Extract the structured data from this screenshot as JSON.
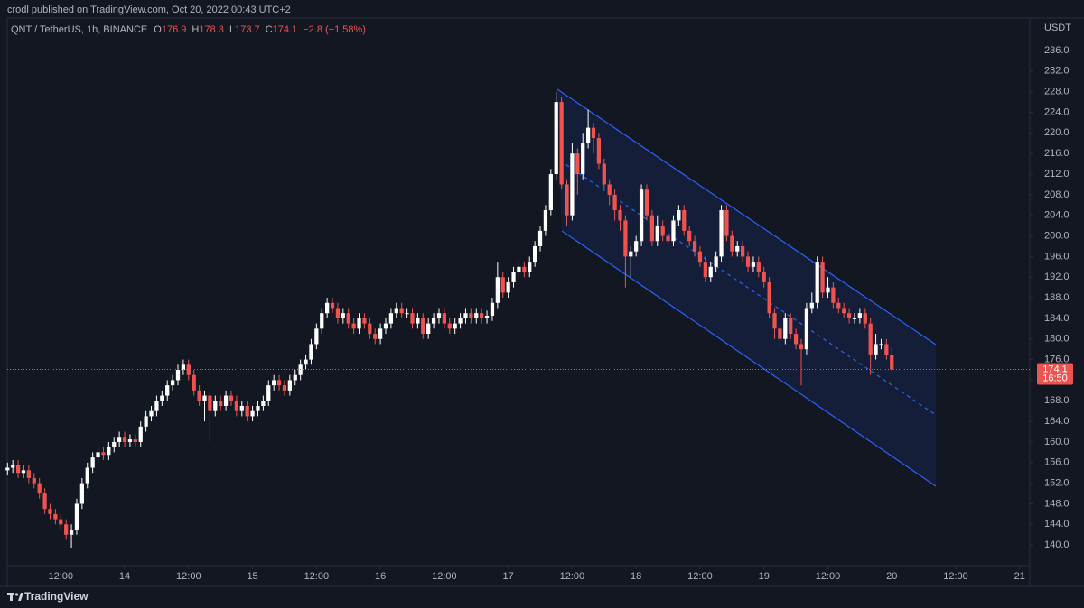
{
  "header": {
    "published": "crodl published on TradingView.com, Oct 20, 2022 00:43 UTC+2",
    "symbol": "QNT / TetherUS, 1h, BINANCE",
    "ohlc_labels": [
      "O",
      "H",
      "L",
      "C"
    ],
    "change": "−2.8 (−1.58%)",
    "currency": "USDT"
  },
  "footer": {
    "brand": "TradingView"
  },
  "chart_data": {
    "type": "candlestick",
    "up_color": "#ffffff",
    "down_color": "#ef5350",
    "countdown": "16:50",
    "xlim": [
      1.95,
      193.9
    ],
    "xticks": [
      {
        "value": 12,
        "label": "12:00"
      },
      {
        "value": 24,
        "label": "14"
      },
      {
        "value": 36,
        "label": "12:00"
      },
      {
        "value": 48,
        "label": "15"
      },
      {
        "value": 60,
        "label": "12:00"
      },
      {
        "value": 72,
        "label": "16"
      },
      {
        "value": 84,
        "label": "12:00"
      },
      {
        "value": 96,
        "label": "17"
      },
      {
        "value": 108,
        "label": "12:00"
      },
      {
        "value": 120,
        "label": "18"
      },
      {
        "value": 132,
        "label": "12:00"
      },
      {
        "value": 144,
        "label": "19"
      },
      {
        "value": 156,
        "label": "12:00"
      },
      {
        "value": 168,
        "label": "20"
      },
      {
        "value": 180,
        "label": "12:00"
      },
      {
        "value": 192,
        "label": "21"
      }
    ],
    "ylim": [
      136,
      242.3
    ],
    "yticks": [
      {
        "value": 140,
        "label": "140.0"
      },
      {
        "value": 144,
        "label": "144.0"
      },
      {
        "value": 148,
        "label": "148.0"
      },
      {
        "value": 152,
        "label": "152.0"
      },
      {
        "value": 156,
        "label": "156.0"
      },
      {
        "value": 160,
        "label": "160.0"
      },
      {
        "value": 164,
        "label": "164.0"
      },
      {
        "value": 168,
        "label": "168.0"
      },
      {
        "value": 172,
        "label": "172.0"
      },
      {
        "value": 176,
        "label": "176.0"
      },
      {
        "value": 180,
        "label": "180.0"
      },
      {
        "value": 184,
        "label": "184.0"
      },
      {
        "value": 188,
        "label": "188.0"
      },
      {
        "value": 192,
        "label": "192.0"
      },
      {
        "value": 196,
        "label": "196.0"
      },
      {
        "value": 200,
        "label": "200.0"
      },
      {
        "value": 204,
        "label": "204.0"
      },
      {
        "value": 208,
        "label": "208.0"
      },
      {
        "value": 212,
        "label": "212.0"
      },
      {
        "value": 216,
        "label": "216.0"
      },
      {
        "value": 220,
        "label": "220.0"
      },
      {
        "value": 224,
        "label": "224.0"
      },
      {
        "value": 228,
        "label": "228.0"
      },
      {
        "value": 232,
        "label": "232.0"
      },
      {
        "value": 236,
        "label": "236.0"
      }
    ],
    "x": [
      2,
      3,
      4,
      5,
      6,
      7,
      8,
      9,
      10,
      11,
      12,
      13,
      14,
      15,
      16,
      17,
      18,
      19,
      20,
      21,
      22,
      23,
      24,
      25,
      26,
      27,
      28,
      29,
      30,
      31,
      32,
      33,
      34,
      35,
      36,
      37,
      38,
      39,
      40,
      41,
      42,
      43,
      44,
      45,
      46,
      47,
      48,
      49,
      50,
      51,
      52,
      53,
      54,
      55,
      56,
      57,
      58,
      59,
      60,
      61,
      62,
      63,
      64,
      65,
      66,
      67,
      68,
      69,
      70,
      71,
      72,
      73,
      74,
      75,
      76,
      77,
      78,
      79,
      80,
      81,
      82,
      83,
      84,
      85,
      86,
      87,
      88,
      89,
      90,
      91,
      92,
      93,
      94,
      95,
      96,
      97,
      98,
      99,
      100,
      101,
      102,
      103,
      104,
      105,
      106,
      107,
      108,
      109,
      110,
      111,
      112,
      113,
      114,
      115,
      116,
      117,
      118,
      119,
      120,
      121,
      122,
      123,
      124,
      125,
      126,
      127,
      128,
      129,
      130,
      131,
      132,
      133,
      134,
      135,
      136,
      137,
      138,
      139,
      140,
      141,
      142,
      143,
      144,
      145,
      146,
      147,
      148,
      149,
      150,
      151,
      152,
      153,
      154,
      155,
      156,
      157,
      158,
      159,
      160,
      161,
      162,
      163,
      164,
      165,
      166,
      167,
      168
    ],
    "open": [
      154.5,
      155,
      155.5,
      154,
      154.5,
      153,
      152,
      150,
      147,
      146,
      145,
      144,
      142,
      143,
      148,
      152,
      155,
      157,
      158,
      157.5,
      159,
      160,
      161,
      160,
      160.5,
      160,
      163,
      165,
      166,
      168,
      169,
      171,
      172,
      174,
      175,
      173,
      170,
      168,
      169,
      166,
      168,
      167,
      169,
      168,
      166,
      167,
      165,
      166,
      167,
      168,
      171,
      172,
      171,
      170,
      172,
      173,
      175,
      176,
      179,
      182,
      185,
      187,
      186,
      184,
      185,
      183,
      182,
      184,
      183,
      181,
      180,
      182,
      183,
      185,
      186,
      185,
      185,
      183,
      184,
      181,
      183,
      184,
      185,
      183,
      182,
      183,
      184,
      185,
      184,
      185,
      184,
      184.5,
      187,
      192,
      189,
      191,
      193,
      194,
      193,
      195,
      198,
      201,
      205,
      212,
      226,
      210,
      204,
      216,
      212,
      218,
      221,
      219,
      214,
      210,
      208,
      205,
      203,
      196,
      197,
      199,
      209,
      204,
      199,
      202,
      200,
      199,
      203,
      205,
      201,
      199,
      197,
      195,
      192,
      194,
      196,
      205,
      200,
      197,
      198,
      196,
      194,
      195,
      193,
      191,
      185,
      182,
      180,
      184,
      181,
      179,
      178,
      186,
      187,
      195,
      189,
      190,
      187,
      186,
      185,
      184,
      184,
      185,
      183,
      177,
      179,
      179,
      176.9
    ],
    "high": [
      156,
      156.5,
      156.5,
      155.5,
      155.5,
      154,
      153,
      151,
      148,
      147,
      146,
      145,
      144,
      149,
      153,
      156,
      158,
      159,
      159,
      160,
      161,
      162,
      162,
      161.5,
      161.5,
      164,
      166,
      167,
      169,
      170,
      172,
      173,
      175,
      176,
      176,
      174,
      171,
      170,
      170,
      169,
      169,
      170,
      170,
      169,
      168,
      168,
      167,
      168,
      169,
      172,
      173,
      173,
      172,
      173,
      174,
      176,
      177,
      180,
      183,
      186,
      188,
      188,
      187,
      186,
      186,
      184,
      185,
      185,
      184,
      182,
      183,
      184,
      186,
      187,
      187,
      186,
      186,
      185,
      185,
      184,
      185,
      186,
      186,
      184,
      184,
      185,
      186,
      186,
      186,
      186,
      185.5,
      188,
      195,
      193,
      192,
      194,
      195,
      195,
      196,
      199,
      202,
      206,
      213,
      228,
      227,
      211,
      218,
      217,
      220,
      224.5,
      222,
      220,
      215,
      211,
      209,
      206,
      204,
      198,
      200,
      210,
      210,
      205,
      204,
      203,
      201,
      204,
      206,
      206,
      202,
      200,
      198,
      196,
      195,
      197,
      206,
      206,
      201,
      199,
      199,
      197,
      196,
      196,
      194,
      192,
      186,
      183,
      185,
      185,
      182,
      180,
      187,
      189,
      196,
      196,
      192,
      191,
      188,
      187,
      186,
      185,
      186,
      186,
      184,
      181,
      180,
      180,
      178.3
    ],
    "low": [
      153.5,
      154,
      153,
      153,
      152,
      151,
      149,
      146,
      145,
      144,
      143,
      141,
      139.5,
      142,
      147,
      151,
      154,
      156,
      156.5,
      156.5,
      158,
      159,
      159,
      159,
      159,
      159,
      162,
      164,
      165,
      167,
      168,
      170,
      171,
      173,
      172,
      169,
      167,
      164,
      160,
      165,
      166,
      166,
      167,
      165,
      165,
      164,
      164,
      165,
      166,
      167,
      170,
      170,
      169,
      169,
      171,
      172,
      174,
      175,
      178,
      181,
      184,
      185,
      183,
      183,
      182,
      181,
      181,
      182,
      180,
      179,
      179,
      181,
      182,
      184,
      184,
      184,
      182,
      182,
      180,
      180,
      182,
      183,
      182,
      181,
      181,
      182,
      183,
      183,
      183,
      183,
      183,
      183.5,
      186,
      188,
      188,
      190,
      192,
      192,
      192,
      194,
      197,
      200,
      204,
      211,
      209,
      202,
      203,
      208,
      211,
      217,
      216,
      213,
      209,
      206,
      203,
      201,
      190,
      192,
      196,
      198,
      203,
      198,
      198,
      199,
      198,
      198,
      202,
      200,
      198,
      196,
      194,
      191,
      191,
      193,
      195,
      199,
      196,
      196,
      195,
      193,
      193,
      192,
      190,
      184,
      180,
      178,
      179,
      180,
      178,
      171,
      177,
      185,
      186,
      188,
      188,
      186,
      185,
      184,
      183,
      183,
      183,
      182,
      173,
      176,
      178,
      176,
      173.7
    ],
    "close": [
      155,
      155.5,
      154,
      154.5,
      153,
      152,
      150,
      147,
      146,
      145,
      144,
      142,
      143,
      148,
      152,
      155,
      157,
      158,
      157.5,
      159,
      160,
      161,
      160,
      160.5,
      160,
      163,
      165,
      166,
      168,
      169,
      171,
      172,
      174,
      175,
      173,
      170,
      168,
      169,
      166,
      168,
      167,
      169,
      168,
      166,
      167,
      165,
      166,
      167,
      168,
      171,
      172,
      171,
      170,
      172,
      173,
      175,
      176,
      179,
      182,
      185,
      187,
      186,
      184,
      185,
      183,
      182,
      184,
      183,
      181,
      180,
      182,
      183,
      185,
      186,
      185,
      185,
      183,
      184,
      181,
      183,
      184,
      185,
      183,
      182,
      183,
      184,
      185,
      184,
      185,
      184,
      184.5,
      187,
      192,
      189,
      191,
      193,
      194,
      193,
      195,
      198,
      201,
      205,
      212,
      226,
      210,
      204,
      216,
      212,
      218,
      221,
      219,
      214,
      210,
      208,
      205,
      203,
      196,
      197,
      199,
      209,
      204,
      199,
      202,
      200,
      199,
      203,
      205,
      201,
      199,
      197,
      195,
      192,
      194,
      196,
      205,
      200,
      197,
      198,
      196,
      194,
      195,
      193,
      191,
      185,
      182,
      180,
      184,
      181,
      179,
      178,
      186,
      187,
      195,
      189,
      190,
      187,
      186,
      185,
      184,
      184,
      185,
      183,
      177,
      179,
      179,
      176.9,
      174.1
    ]
  }
}
